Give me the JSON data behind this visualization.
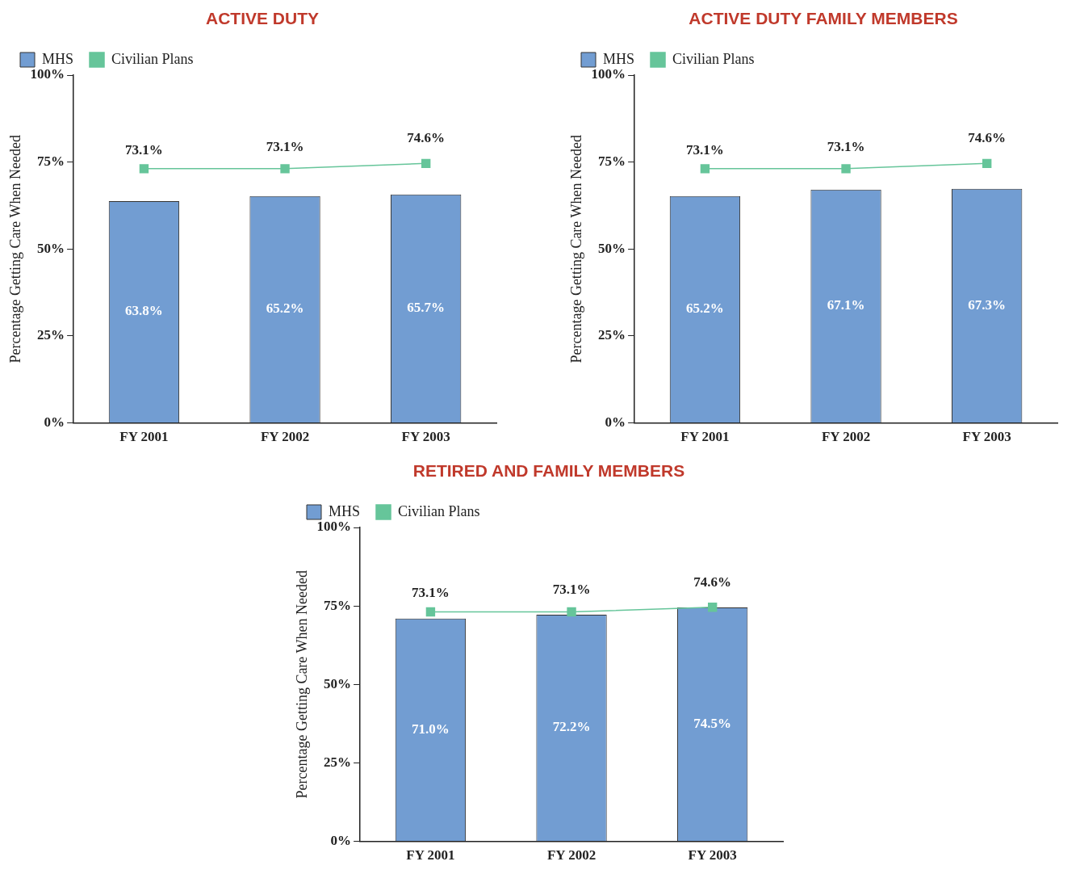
{
  "chart_data": [
    {
      "type": "bar",
      "title": "ACTIVE DUTY",
      "ylabel": "Percentage Getting Care When Needed",
      "categories": [
        "FY 2001",
        "FY 2002",
        "FY 2003"
      ],
      "ylim": [
        0,
        100
      ],
      "yticks": [
        {
          "value": 0,
          "label": "0%"
        },
        {
          "value": 25,
          "label": "25%"
        },
        {
          "value": 50,
          "label": "50%"
        },
        {
          "value": 75,
          "label": "75%"
        },
        {
          "value": 100,
          "label": "100%"
        }
      ],
      "grid": false,
      "legend": "top left",
      "series": [
        {
          "name": "MHS",
          "color": "#729dd2",
          "values": [
            63.8,
            65.2,
            65.7
          ],
          "value_labels": [
            "63.8%",
            "65.2%",
            "65.7%"
          ]
        },
        {
          "name": "Civilian Plans",
          "type": "line",
          "color": "#66c59a",
          "marker": "square",
          "values": [
            73.1,
            73.1,
            74.6
          ],
          "value_labels": [
            "73.1%",
            "73.1%",
            "74.6%"
          ]
        }
      ]
    },
    {
      "type": "bar",
      "title": "ACTIVE DUTY FAMILY MEMBERS",
      "ylabel": "Percentage Getting Care When Needed",
      "categories": [
        "FY 2001",
        "FY 2002",
        "FY 2003"
      ],
      "ylim": [
        0,
        100
      ],
      "yticks": [
        {
          "value": 0,
          "label": "0%"
        },
        {
          "value": 25,
          "label": "25%"
        },
        {
          "value": 50,
          "label": "50%"
        },
        {
          "value": 75,
          "label": "75%"
        },
        {
          "value": 100,
          "label": "100%"
        }
      ],
      "grid": false,
      "legend": "top left",
      "series": [
        {
          "name": "MHS",
          "color": "#729dd2",
          "values": [
            65.2,
            67.1,
            67.3
          ],
          "value_labels": [
            "65.2%",
            "67.1%",
            "67.3%"
          ]
        },
        {
          "name": "Civilian Plans",
          "type": "line",
          "color": "#66c59a",
          "marker": "square",
          "values": [
            73.1,
            73.1,
            74.6
          ],
          "value_labels": [
            "73.1%",
            "73.1%",
            "74.6%"
          ]
        }
      ]
    },
    {
      "type": "bar",
      "title": "RETIRED AND FAMILY MEMBERS",
      "ylabel": "Percentage Getting Care When Needed",
      "categories": [
        "FY 2001",
        "FY 2002",
        "FY 2003"
      ],
      "ylim": [
        0,
        100
      ],
      "yticks": [
        {
          "value": 0,
          "label": "0%"
        },
        {
          "value": 25,
          "label": "25%"
        },
        {
          "value": 50,
          "label": "50%"
        },
        {
          "value": 75,
          "label": "75%"
        },
        {
          "value": 100,
          "label": "100%"
        }
      ],
      "grid": false,
      "legend": "top left",
      "series": [
        {
          "name": "MHS",
          "color": "#729dd2",
          "values": [
            71.0,
            72.2,
            74.5
          ],
          "value_labels": [
            "71.0%",
            "72.2%",
            "74.5%"
          ]
        },
        {
          "name": "Civilian Plans",
          "type": "line",
          "color": "#66c59a",
          "marker": "square",
          "values": [
            73.1,
            73.1,
            74.6
          ],
          "value_labels": [
            "73.1%",
            "73.1%",
            "74.6%"
          ]
        }
      ]
    }
  ]
}
